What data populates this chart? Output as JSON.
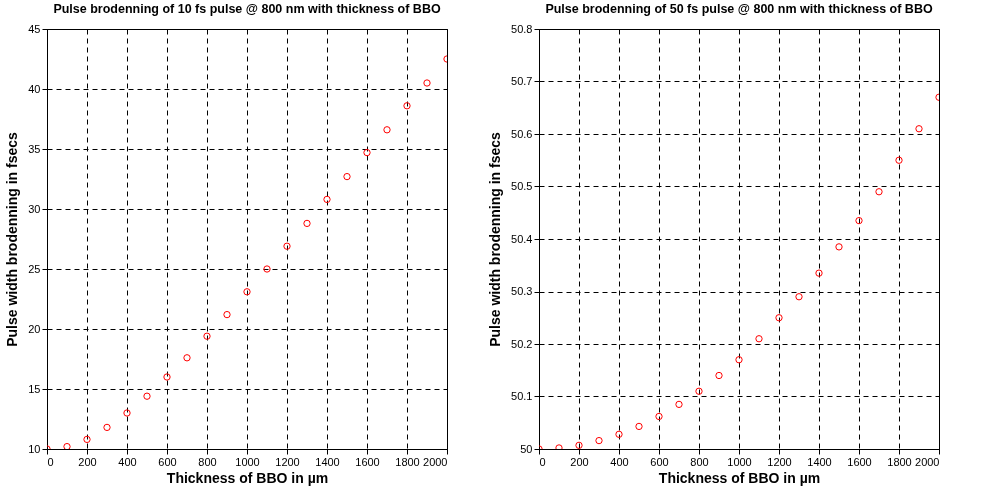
{
  "chart_data": [
    {
      "type": "scatter",
      "title": "Pulse brodenning of 10 fs pulse @ 800 nm with thickness of BBO",
      "xlabel": "Thickness of BBO in µm",
      "ylabel": "Pulse width brodenning in fsecs",
      "x": [
        0,
        100,
        200,
        300,
        400,
        500,
        600,
        700,
        800,
        900,
        1000,
        1100,
        1200,
        1300,
        1400,
        1500,
        1600,
        1700,
        1800,
        1900,
        2000
      ],
      "series": [
        {
          "color": "#ff0000",
          "values": [
            10,
            10.2,
            10.8,
            11.8,
            13,
            14.4,
            16,
            17.6,
            19.4,
            21.2,
            23.1,
            25,
            26.9,
            28.8,
            30.8,
            32.7,
            34.7,
            36.6,
            38.6,
            40.5,
            42.5
          ]
        }
      ],
      "xlim": [
        0,
        2000
      ],
      "ylim": [
        10,
        45
      ],
      "xticks": [
        0,
        200,
        400,
        600,
        800,
        1000,
        1200,
        1400,
        1600,
        1800,
        2000
      ],
      "yticks": [
        10,
        15,
        20,
        25,
        30,
        35,
        40,
        45
      ],
      "grid": true,
      "marker": "circle"
    },
    {
      "type": "scatter",
      "title": "Pulse brodenning of 50 fs pulse @ 800 nm with thickness of BBO",
      "xlabel": "Thickness of BBO in µm",
      "ylabel": "Pulse width brodenning in fsecs",
      "x": [
        0,
        100,
        200,
        300,
        400,
        500,
        600,
        700,
        800,
        900,
        1000,
        1100,
        1200,
        1300,
        1400,
        1500,
        1600,
        1700,
        1800,
        1900,
        2000
      ],
      "series": [
        {
          "color": "#ff0000",
          "values": [
            50,
            50.002,
            50.007,
            50.016,
            50.028,
            50.043,
            50.062,
            50.085,
            50.11,
            50.14,
            50.17,
            50.21,
            50.25,
            50.29,
            50.335,
            50.385,
            50.435,
            50.49,
            50.55,
            50.61,
            50.67
          ]
        }
      ],
      "xlim": [
        0,
        2000
      ],
      "ylim": [
        50,
        50.8
      ],
      "xticks": [
        0,
        200,
        400,
        600,
        800,
        1000,
        1200,
        1400,
        1600,
        1800,
        2000
      ],
      "yticks": [
        50,
        50.1,
        50.2,
        50.3,
        50.4,
        50.5,
        50.6,
        50.7,
        50.8
      ],
      "grid": true,
      "marker": "circle"
    }
  ]
}
